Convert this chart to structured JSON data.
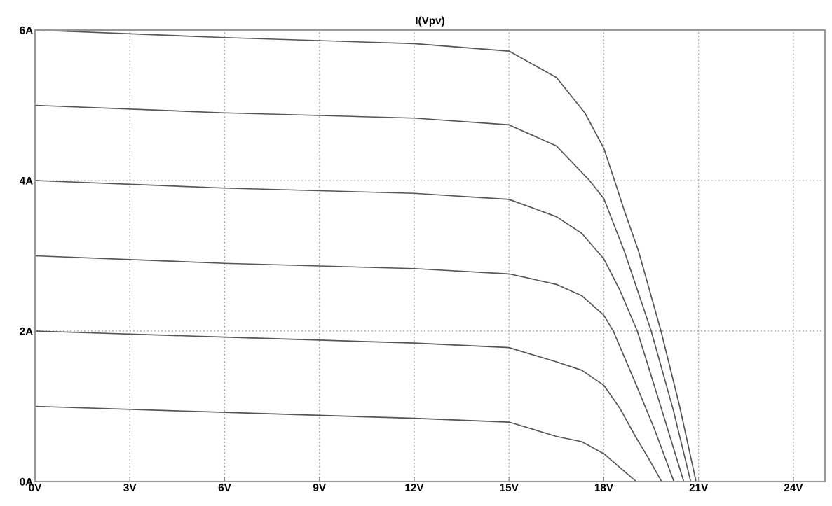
{
  "chart_data": {
    "type": "line",
    "title": "I(Vpv)",
    "xlim": [
      0,
      25
    ],
    "ylim": [
      0,
      6
    ],
    "xticks": [
      {
        "value": 0,
        "label": "0V"
      },
      {
        "value": 3,
        "label": "3V"
      },
      {
        "value": 6,
        "label": "6V"
      },
      {
        "value": 9,
        "label": "9V"
      },
      {
        "value": 12,
        "label": "12V"
      },
      {
        "value": 15,
        "label": "15V"
      },
      {
        "value": 18,
        "label": "18V"
      },
      {
        "value": 21,
        "label": "21V"
      },
      {
        "value": 24,
        "label": "24V"
      }
    ],
    "yticks": [
      {
        "value": 0,
        "label": "0A"
      },
      {
        "value": 2,
        "label": "2A"
      },
      {
        "value": 4,
        "label": "4A"
      },
      {
        "value": 6,
        "label": "6A"
      }
    ],
    "grid": true,
    "line_style": "solid",
    "marker": "none",
    "series": [
      {
        "color": "#555555",
        "x": [
          0,
          6,
          12,
          15,
          16.5,
          17.4,
          18,
          18.34,
          18.65,
          19.1,
          19.81,
          20.4,
          20.92
        ],
        "values": [
          6,
          5.9,
          5.82,
          5.72,
          5.37,
          4.9,
          4.43,
          4.0,
          3.6,
          3.06,
          2.0,
          1.0,
          0
        ]
      },
      {
        "color": "#555555",
        "x": [
          0,
          6,
          12,
          15,
          16.5,
          17.55,
          18,
          18.65,
          19.5,
          20.2,
          20.75
        ],
        "values": [
          5,
          4.9,
          4.83,
          4.74,
          4.46,
          4.0,
          3.76,
          3.06,
          2.0,
          0.95,
          0
        ]
      },
      {
        "color": "#555555",
        "x": [
          0,
          6,
          12,
          15,
          16.5,
          17.3,
          18,
          18.5,
          19.06,
          19.8,
          20.53
        ],
        "values": [
          4,
          3.9,
          3.83,
          3.75,
          3.52,
          3.3,
          2.96,
          2.55,
          2.0,
          1.0,
          0
        ]
      },
      {
        "color": "#555555",
        "x": [
          0,
          6,
          12,
          15,
          16.5,
          17.3,
          18,
          18.3,
          19,
          19.6,
          20.22
        ],
        "values": [
          3,
          2.9,
          2.83,
          2.76,
          2.62,
          2.47,
          2.21,
          2.0,
          1.31,
          0.7,
          0
        ]
      },
      {
        "color": "#555555",
        "x": [
          0,
          6,
          12,
          15,
          16.5,
          17.3,
          18,
          18.5,
          19,
          19.4,
          19.83
        ],
        "values": [
          2,
          1.92,
          1.84,
          1.78,
          1.59,
          1.48,
          1.28,
          0.98,
          0.6,
          0.32,
          0
        ]
      },
      {
        "color": "#555555",
        "x": [
          0,
          6,
          12,
          15,
          16.5,
          17.3,
          18,
          18.5,
          19.03
        ],
        "values": [
          1,
          0.92,
          0.84,
          0.79,
          0.6,
          0.53,
          0.37,
          0.19,
          0
        ]
      }
    ]
  }
}
